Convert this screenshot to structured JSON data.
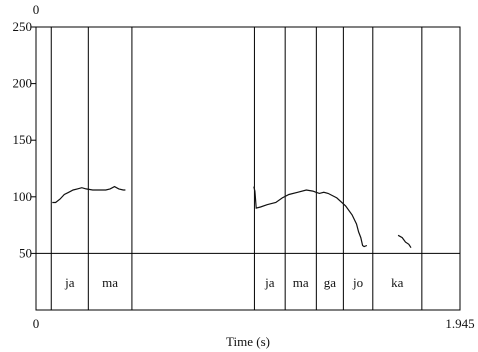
{
  "chart_data": {
    "type": "line",
    "title": "",
    "xlabel": "Time (s)",
    "ylabel": "",
    "xlim": [
      0,
      1.945
    ],
    "ylim": [
      0,
      250
    ],
    "top_label": "0",
    "x_ticks": [
      "0",
      "1.945"
    ],
    "y_ticks": [
      50,
      100,
      150,
      200,
      250
    ],
    "reference_line": 50,
    "series": [
      {
        "values": [
          [
            0.075,
            95
          ],
          [
            0.09,
            95
          ],
          [
            0.11,
            98
          ],
          [
            0.13,
            102
          ],
          [
            0.15,
            104
          ],
          [
            0.17,
            106
          ],
          [
            0.19,
            107
          ],
          [
            0.21,
            108
          ],
          [
            0.23,
            107
          ],
          [
            0.26,
            106
          ],
          [
            0.29,
            106
          ],
          [
            0.32,
            106
          ],
          [
            0.34,
            107
          ],
          [
            0.36,
            109
          ],
          [
            0.38,
            107
          ],
          [
            0.4,
            106
          ],
          [
            0.41,
            106
          ]
        ]
      },
      {
        "values": [
          [
            0.999,
            109
          ],
          [
            1.004,
            105
          ],
          [
            1.01,
            90
          ],
          [
            1.03,
            91
          ],
          [
            1.06,
            93
          ],
          [
            1.08,
            94
          ],
          [
            1.1,
            95
          ],
          [
            1.13,
            99
          ],
          [
            1.16,
            102
          ],
          [
            1.2,
            104
          ],
          [
            1.24,
            106
          ],
          [
            1.27,
            105
          ],
          [
            1.285,
            104
          ],
          [
            1.3,
            103
          ],
          [
            1.32,
            104
          ],
          [
            1.34,
            103
          ],
          [
            1.38,
            99
          ],
          [
            1.42,
            92
          ],
          [
            1.45,
            84
          ],
          [
            1.47,
            76
          ],
          [
            1.48,
            69
          ],
          [
            1.49,
            64
          ],
          [
            1.498,
            57
          ],
          [
            1.505,
            56
          ],
          [
            1.518,
            57
          ]
        ]
      },
      {
        "values": [
          [
            1.661,
            66
          ],
          [
            1.68,
            64
          ],
          [
            1.695,
            60
          ],
          [
            1.71,
            58
          ],
          [
            1.72,
            55
          ]
        ]
      }
    ],
    "segments": [
      {
        "label": "ja",
        "start": 0.07,
        "end": 0.24
      },
      {
        "label": "ma",
        "start": 0.24,
        "end": 0.44
      },
      {
        "label": "ja",
        "start": 1.002,
        "end": 1.143
      },
      {
        "label": "ma",
        "start": 1.143,
        "end": 1.286
      },
      {
        "label": "ga",
        "start": 1.286,
        "end": 1.41
      },
      {
        "label": "jo",
        "start": 1.41,
        "end": 1.545
      },
      {
        "label": "ka",
        "start": 1.545,
        "end": 1.77
      }
    ]
  }
}
